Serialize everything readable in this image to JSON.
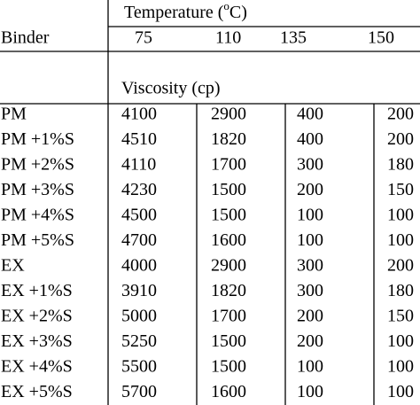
{
  "table": {
    "header": {
      "binder": "Binder",
      "temperature": {
        "before": "Temperature (",
        "sup": "o",
        "after": "C)"
      },
      "temperatures": [
        75,
        110,
        135,
        150
      ],
      "quantity": "Viscosity (cp)"
    },
    "rows": [
      [
        "PM",
        4100,
        2900,
        400,
        200
      ],
      [
        "PM +1%S",
        4510,
        1820,
        400,
        200
      ],
      [
        "PM +2%S",
        4110,
        1700,
        300,
        180
      ],
      [
        "PM +3%S",
        4230,
        1500,
        200,
        150
      ],
      [
        "PM +4%S",
        4500,
        1500,
        100,
        100
      ],
      [
        "PM +5%S",
        4700,
        1600,
        100,
        100
      ],
      [
        "EX",
        4000,
        2900,
        300,
        200
      ],
      [
        "EX +1%S",
        3910,
        1820,
        300,
        180
      ],
      [
        "EX +2%S",
        5000,
        1700,
        200,
        150
      ],
      [
        "EX +3%S",
        5250,
        1500,
        200,
        100
      ],
      [
        "EX +4%S",
        5500,
        1500,
        100,
        100
      ],
      [
        "EX +5%S",
        5700,
        1600,
        100,
        100
      ]
    ]
  }
}
